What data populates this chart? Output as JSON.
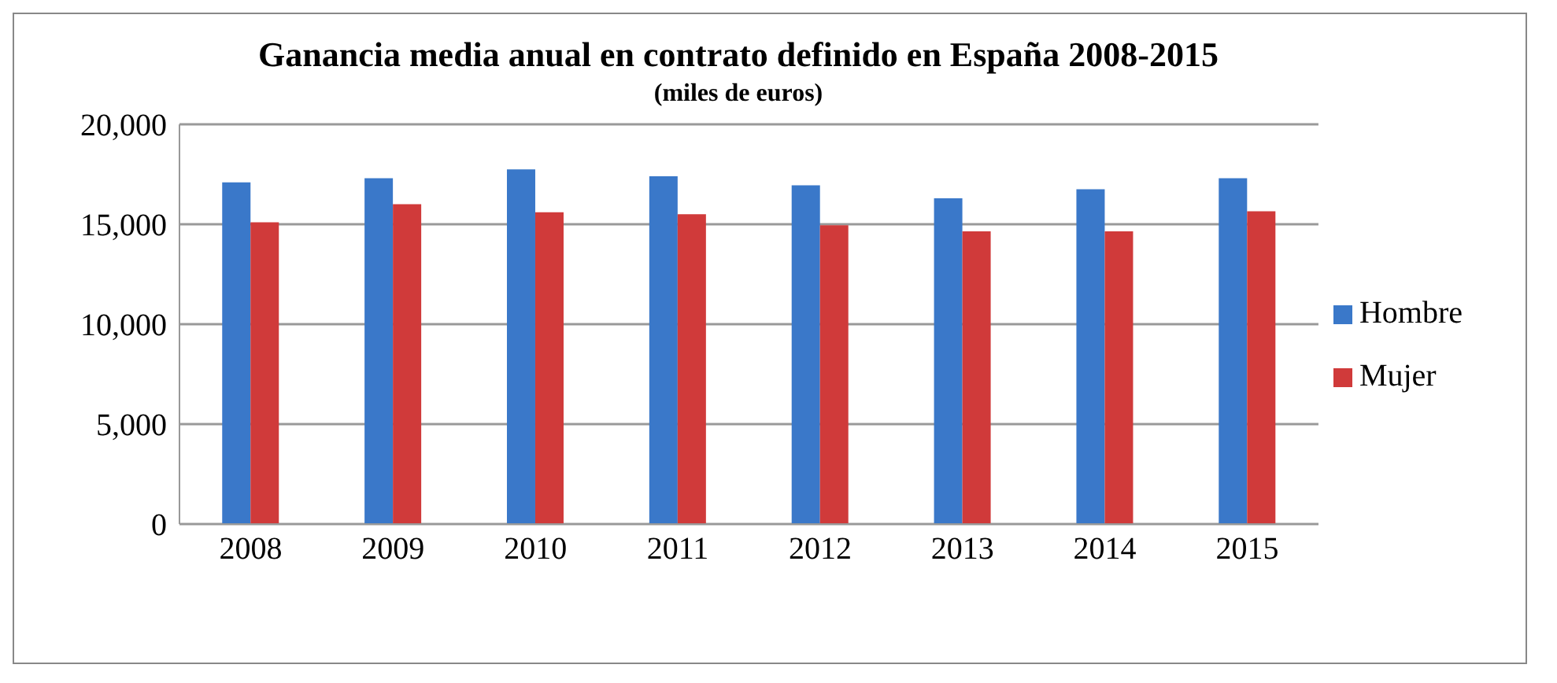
{
  "chart_data": {
    "type": "bar",
    "title": "Ganancia media anual en contrato definido en España 2008-2015",
    "subtitle": "(miles de euros)",
    "categories": [
      "2008",
      "2009",
      "2010",
      "2011",
      "2012",
      "2013",
      "2014",
      "2015"
    ],
    "series": [
      {
        "name": "Hombre",
        "color": "#3a78c9",
        "values": [
          17100,
          17300,
          17750,
          17400,
          16950,
          16300,
          16750,
          17300
        ]
      },
      {
        "name": "Mujer",
        "color": "#d03a3a",
        "values": [
          15100,
          16000,
          15600,
          15500,
          14950,
          14650,
          14650,
          15650
        ]
      }
    ],
    "ylim": [
      0,
      20000
    ],
    "yticks": [
      {
        "value": 0,
        "label": "0"
      },
      {
        "value": 5000,
        "label": "5,000"
      },
      {
        "value": 10000,
        "label": "10,000"
      },
      {
        "value": 15000,
        "label": "15,000"
      },
      {
        "value": 20000,
        "label": "20,000"
      }
    ],
    "grid": "y",
    "legend": "right"
  }
}
